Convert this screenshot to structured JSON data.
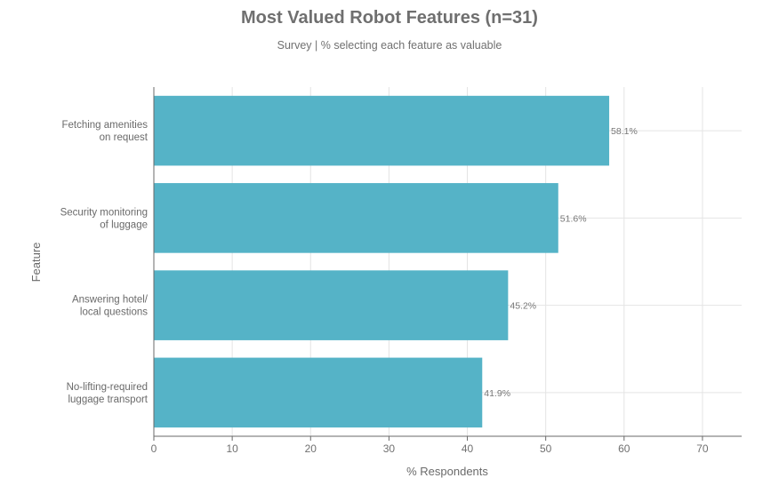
{
  "chart_data": {
    "type": "bar",
    "orientation": "horizontal",
    "title": "Most Valued Robot Features (n=31)",
    "subtitle": "Survey | % selecting each feature as valuable",
    "xlabel": "% Respondents",
    "ylabel": "Feature",
    "categories": [
      [
        "Fetching amenities",
        "on request"
      ],
      [
        "Security monitoring",
        "of luggage"
      ],
      [
        "Answering hotel/",
        "local questions"
      ],
      [
        "No-lifting-required",
        "luggage transport"
      ]
    ],
    "values": [
      58.1,
      51.6,
      45.2,
      41.9
    ],
    "data_labels": [
      "58.1%",
      "51.6%",
      "45.2%",
      "41.9%"
    ],
    "xlim": [
      0,
      75
    ],
    "xticks": [
      0,
      10,
      20,
      30,
      40,
      50,
      60,
      70
    ],
    "grid": true,
    "bar_color": "#55b3c7"
  }
}
